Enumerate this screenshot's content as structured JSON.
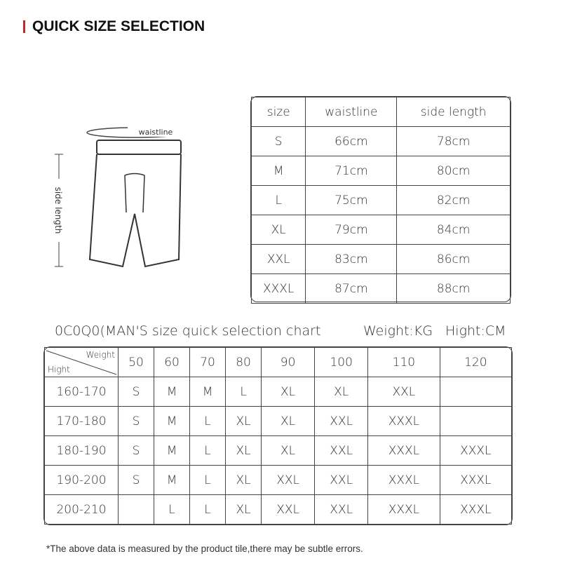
{
  "header": {
    "title": "QUICK SIZE SELECTION",
    "accent": "#c0282d"
  },
  "diagram": {
    "waist_label": "waistline",
    "side_label": "side length"
  },
  "size_table": {
    "headers": [
      "size",
      "waistline",
      "side length"
    ],
    "rows": [
      [
        "S",
        "66cm",
        "78cm"
      ],
      [
        "M",
        "71cm",
        "80cm"
      ],
      [
        "L",
        "75cm",
        "82cm"
      ],
      [
        "XL",
        "79cm",
        "84cm"
      ],
      [
        "XXL",
        "83cm",
        "86cm"
      ],
      [
        "XXXL",
        "87cm",
        "88cm"
      ]
    ]
  },
  "chart": {
    "title": "0C0Q0(MAN'S size quick selection chart",
    "weight_unit": "Weight:KG",
    "height_unit": "Hight:CM",
    "corner_weight": "Weight",
    "corner_height": "Hight",
    "weights": [
      "50",
      "60",
      "70",
      "80",
      "90",
      "100",
      "110",
      "120"
    ],
    "rows": [
      {
        "height": "160-170",
        "sizes": [
          "S",
          "M",
          "M",
          "L",
          "XL",
          "XL",
          "XXL",
          ""
        ]
      },
      {
        "height": "170-180",
        "sizes": [
          "S",
          "M",
          "L",
          "XL",
          "XL",
          "XXL",
          "XXXL",
          ""
        ]
      },
      {
        "height": "180-190",
        "sizes": [
          "S",
          "M",
          "L",
          "XL",
          "XL",
          "XXL",
          "XXXL",
          "XXXL"
        ]
      },
      {
        "height": "190-200",
        "sizes": [
          "S",
          "M",
          "L",
          "XL",
          "XXL",
          "XXL",
          "XXXL",
          "XXXL"
        ]
      },
      {
        "height": "200-210",
        "sizes": [
          "",
          "L",
          "L",
          "XL",
          "XXL",
          "XXL",
          "XXXL",
          "XXXL"
        ]
      }
    ]
  },
  "footnote": "*The above data is measured by the product tile,there may be subtle errors."
}
